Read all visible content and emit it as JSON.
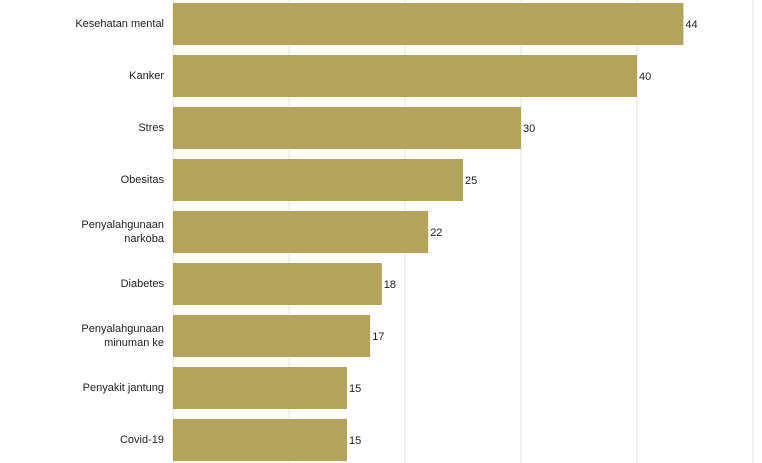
{
  "chart_data": {
    "type": "hbar",
    "categories": [
      "Kesehatan mental",
      "Kanker",
      "Stres",
      "Obesitas",
      "Penyalahgunaan narkoba",
      "Diabetes",
      "Penyalahgunaan minuman ke",
      "Penyakit jantung",
      "Covid-19"
    ],
    "values": [
      44,
      40,
      30,
      25,
      22,
      18,
      17,
      15,
      15
    ],
    "color": "#b3a45a",
    "xlim": [
      0,
      50
    ],
    "xticks": [
      0,
      10,
      20,
      30,
      40,
      50
    ],
    "grid": true
  }
}
